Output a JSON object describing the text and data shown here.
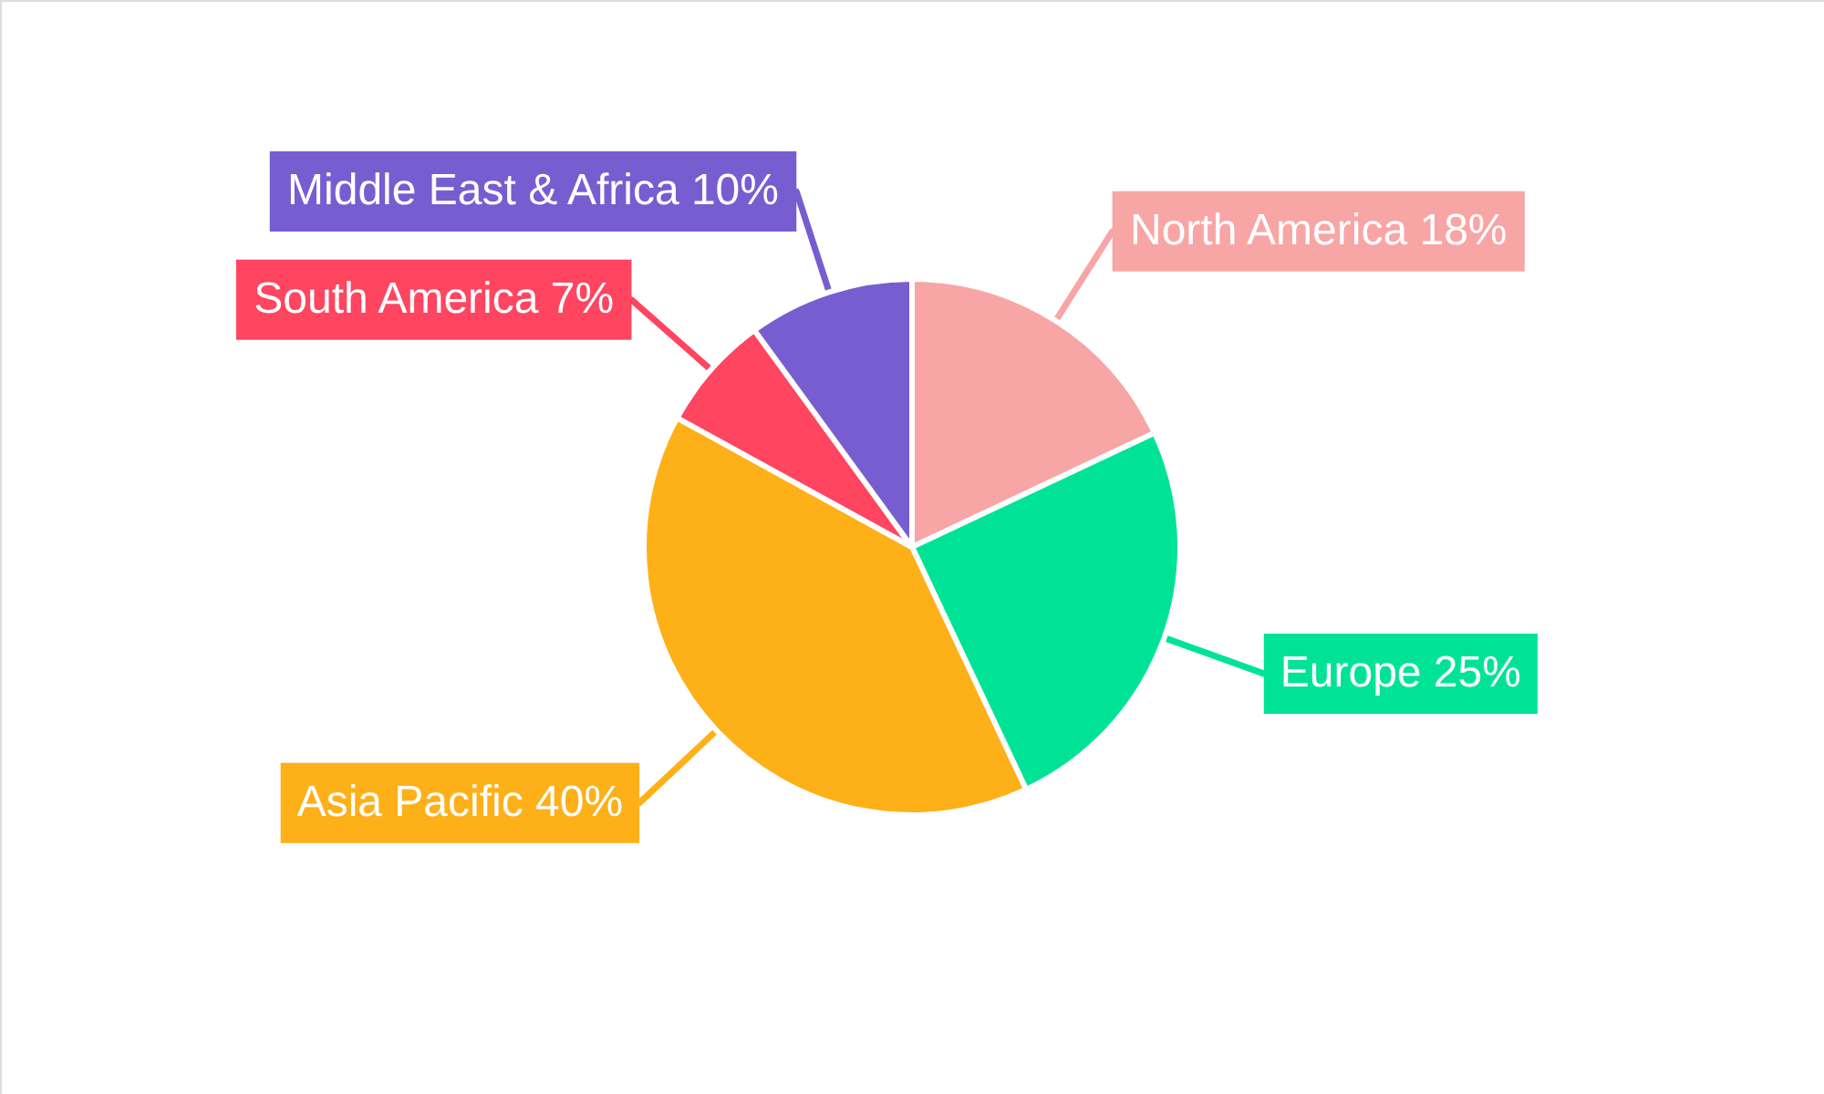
{
  "chart_data": {
    "type": "pie",
    "categories": [
      "North America",
      "Europe",
      "Asia Pacific",
      "South America",
      "Middle East & Africa"
    ],
    "values": [
      18,
      25,
      40,
      7,
      10
    ],
    "value_labels": [
      "18%",
      "25%",
      "40%",
      "7%",
      "10%"
    ],
    "colors": [
      "#f8a5a6",
      "#00e396",
      "#feb019",
      "#ff4560",
      "#775dd0"
    ]
  }
}
